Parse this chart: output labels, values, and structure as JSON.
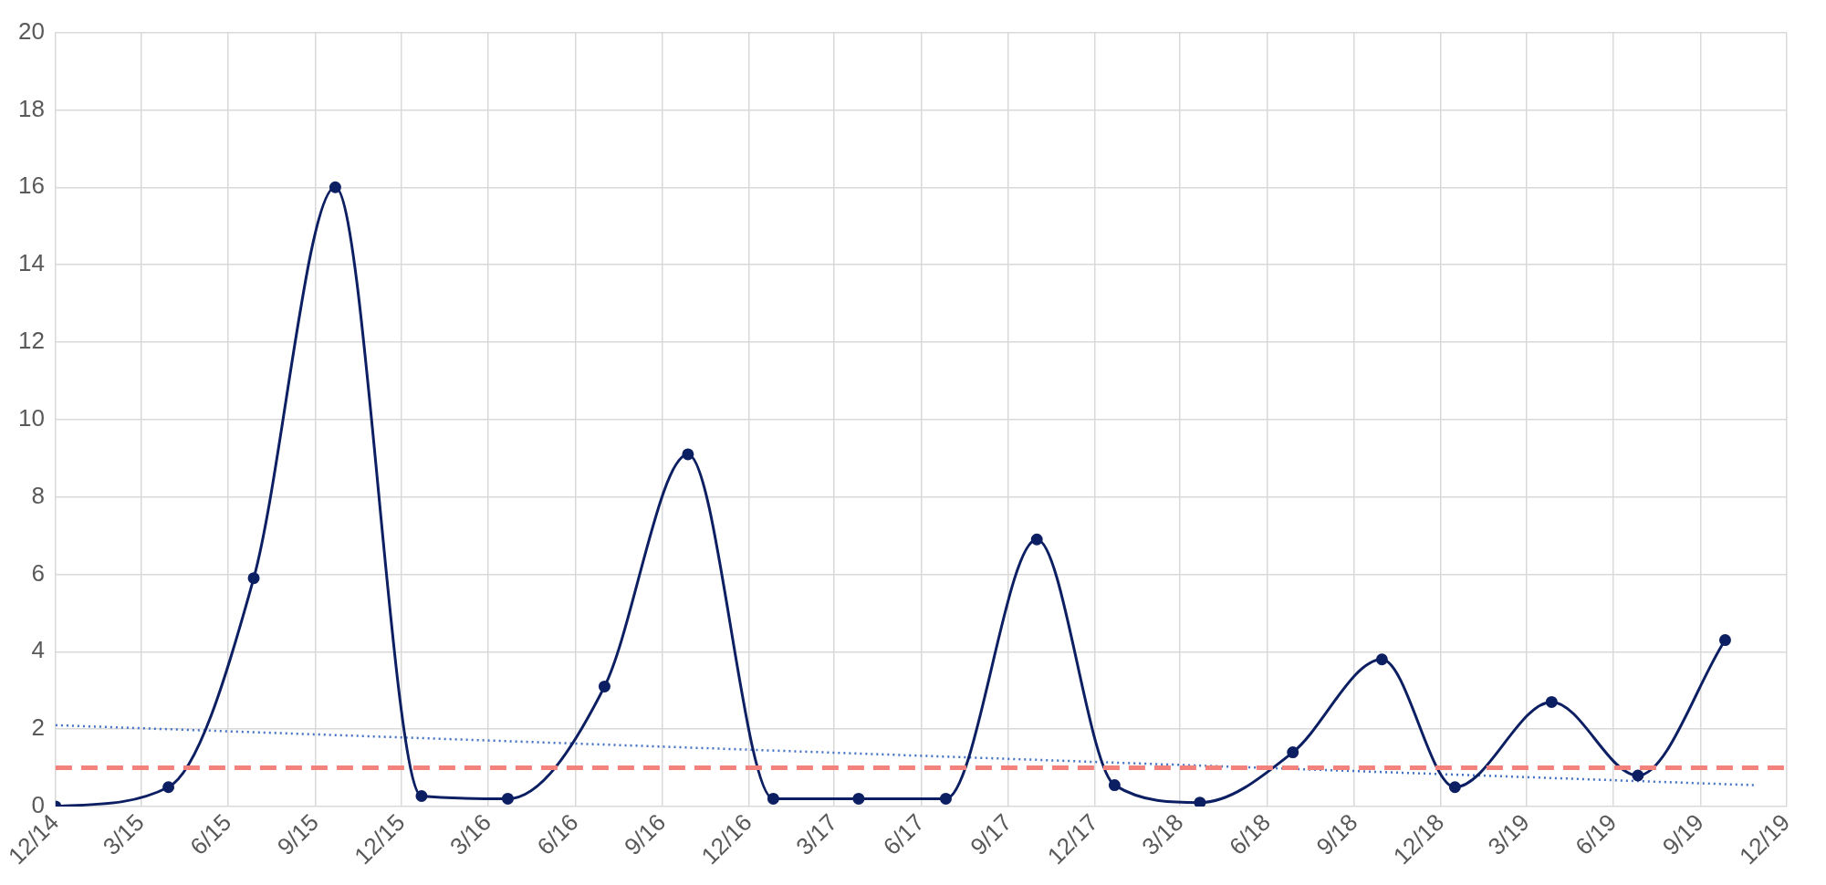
{
  "chart_data": {
    "type": "line",
    "x": [
      "2014-12-01",
      "2015-03-30",
      "2015-06-28",
      "2015-09-22",
      "2015-12-22",
      "2016-03-22",
      "2016-07-02",
      "2016-09-28",
      "2016-12-27",
      "2017-03-27",
      "2017-06-27",
      "2017-10-01",
      "2017-12-22",
      "2018-03-22",
      "2018-06-28",
      "2018-09-30",
      "2018-12-16",
      "2019-03-28",
      "2019-06-27",
      "2019-09-27"
    ],
    "series": [
      {
        "color": "#0d1f63",
        "values": [
          0,
          0.5,
          5.9,
          16.0,
          0.27,
          0.2,
          3.1,
          9.1,
          0.2,
          0.2,
          0.2,
          6.9,
          0.55,
          0.1,
          1.4,
          3.8,
          0.5,
          2.7,
          0.8,
          4.3
        ],
        "marker": "circle",
        "line_style": "solid"
      },
      {
        "type": "line",
        "color": "#4472c4",
        "x": [
          "2014-12-01",
          "2019-10-28"
        ],
        "values": [
          2.1,
          0.55
        ],
        "marker": "none",
        "line_style": "dotted"
      }
    ],
    "xlim": [
      "2014-12-01",
      "2019-12-01"
    ],
    "xticks": [
      {
        "value": "2014-12-01",
        "label": "12/14"
      },
      {
        "value": "2015-03-01",
        "label": "3/15"
      },
      {
        "value": "2015-06-01",
        "label": "6/15"
      },
      {
        "value": "2015-09-01",
        "label": "9/15"
      },
      {
        "value": "2015-12-01",
        "label": "12/15"
      },
      {
        "value": "2016-03-01",
        "label": "3/16"
      },
      {
        "value": "2016-06-01",
        "label": "6/16"
      },
      {
        "value": "2016-09-01",
        "label": "9/16"
      },
      {
        "value": "2016-12-01",
        "label": "12/16"
      },
      {
        "value": "2017-03-01",
        "label": "3/17"
      },
      {
        "value": "2017-06-01",
        "label": "6/17"
      },
      {
        "value": "2017-09-01",
        "label": "9/17"
      },
      {
        "value": "2017-12-01",
        "label": "12/17"
      },
      {
        "value": "2018-03-01",
        "label": "3/18"
      },
      {
        "value": "2018-06-01",
        "label": "6/18"
      },
      {
        "value": "2018-09-01",
        "label": "9/18"
      },
      {
        "value": "2018-12-01",
        "label": "12/18"
      },
      {
        "value": "2019-03-01",
        "label": "3/19"
      },
      {
        "value": "2019-06-01",
        "label": "6/19"
      },
      {
        "value": "2019-09-01",
        "label": "9/19"
      },
      {
        "value": "2019-12-01",
        "label": "12/19"
      }
    ],
    "ylim": [
      0,
      20
    ],
    "yticks": [
      0,
      2,
      4,
      6,
      8,
      10,
      12,
      14,
      16,
      18,
      20
    ],
    "ref_lines": [
      {
        "axis": "y",
        "value": 1,
        "color": "#f4827c",
        "line_style": "dashed"
      }
    ],
    "grid": true,
    "legend": false
  }
}
